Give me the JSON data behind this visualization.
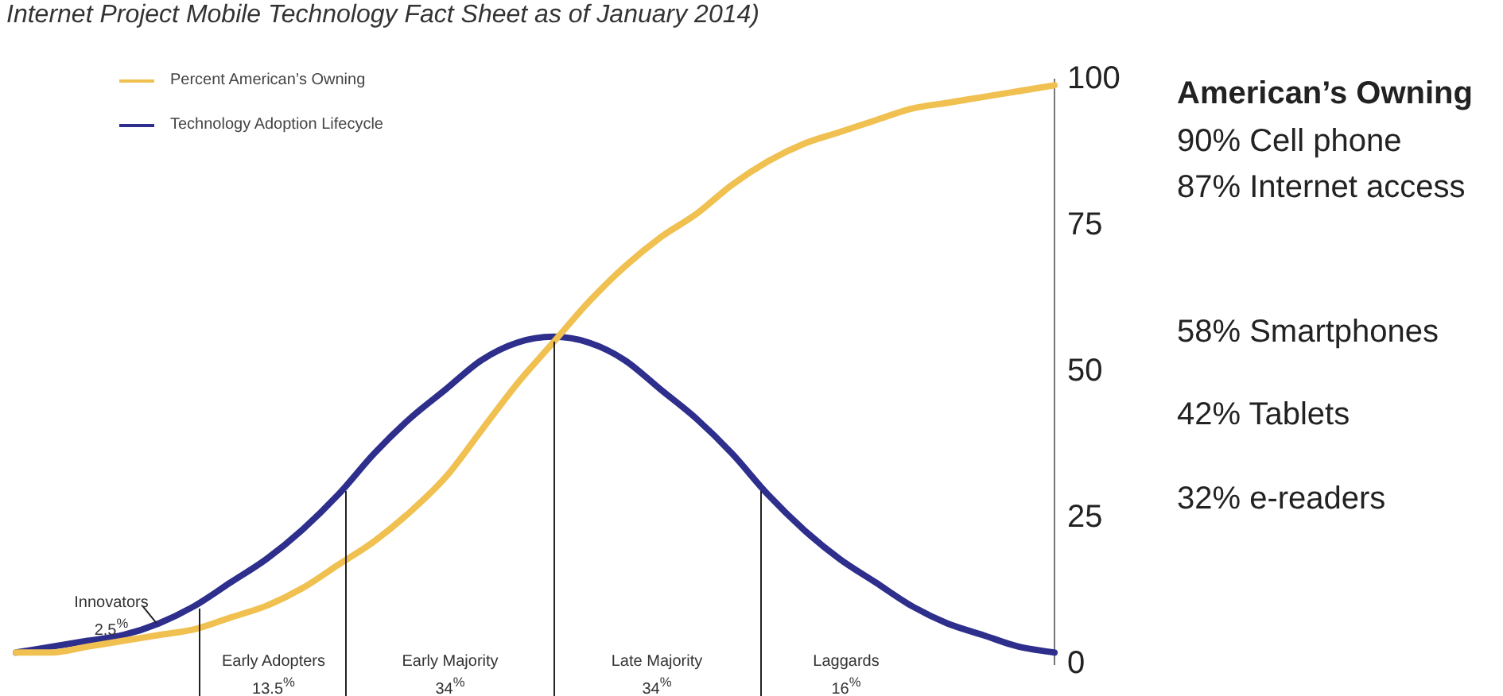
{
  "chart_data": {
    "type": "line",
    "categories": [
      null,
      null,
      null,
      null,
      null,
      null,
      null,
      null,
      null,
      null,
      null,
      null,
      null,
      null,
      null,
      null,
      null,
      null,
      null,
      null,
      null,
      null,
      null,
      null,
      null,
      null,
      null,
      null,
      null,
      null
    ],
    "series": [
      {
        "name": "Percent American’s Owning",
        "color": "#f0c050",
        "values": [
          2,
          2,
          3,
          4,
          5,
          6,
          8,
          10,
          13,
          17,
          21,
          26,
          32,
          40,
          48,
          55,
          62,
          68,
          73,
          77,
          82,
          86,
          89,
          91,
          93,
          95,
          96,
          97,
          98,
          99
        ]
      },
      {
        "name": "Technology Adoption Lifecycle",
        "color": "#2e2e8c",
        "values": [
          2,
          3,
          4,
          5,
          7,
          10,
          14,
          18,
          23,
          29,
          36,
          42,
          47,
          52,
          55,
          56,
          55,
          52,
          47,
          42,
          36,
          29,
          23,
          18,
          14,
          10,
          7,
          5,
          3,
          2
        ]
      }
    ],
    "ylim": [
      0,
      100
    ],
    "yticks": [
      0,
      25,
      50,
      75,
      100
    ],
    "tick_labels": "y",
    "grid": false,
    "legend": "top left",
    "marker": "none",
    "line_style": "solid",
    "annotations": [
      "Internet Project Mobile Technology Fact Sheet as of January 2014)",
      "Innovators\n2.5$^{%}$",
      "Early Adopters\n13.5$^{%}$",
      "Early Majority\n34$^{%}$",
      "Late Majority\n34$^{%}$",
      "Laggards\n16$^{%}$",
      "American’s Owning",
      "90% Cell phone",
      "87% Internet access",
      "58% Smartphones",
      "42% Tablets",
      "32% e-readers"
    ]
  }
}
